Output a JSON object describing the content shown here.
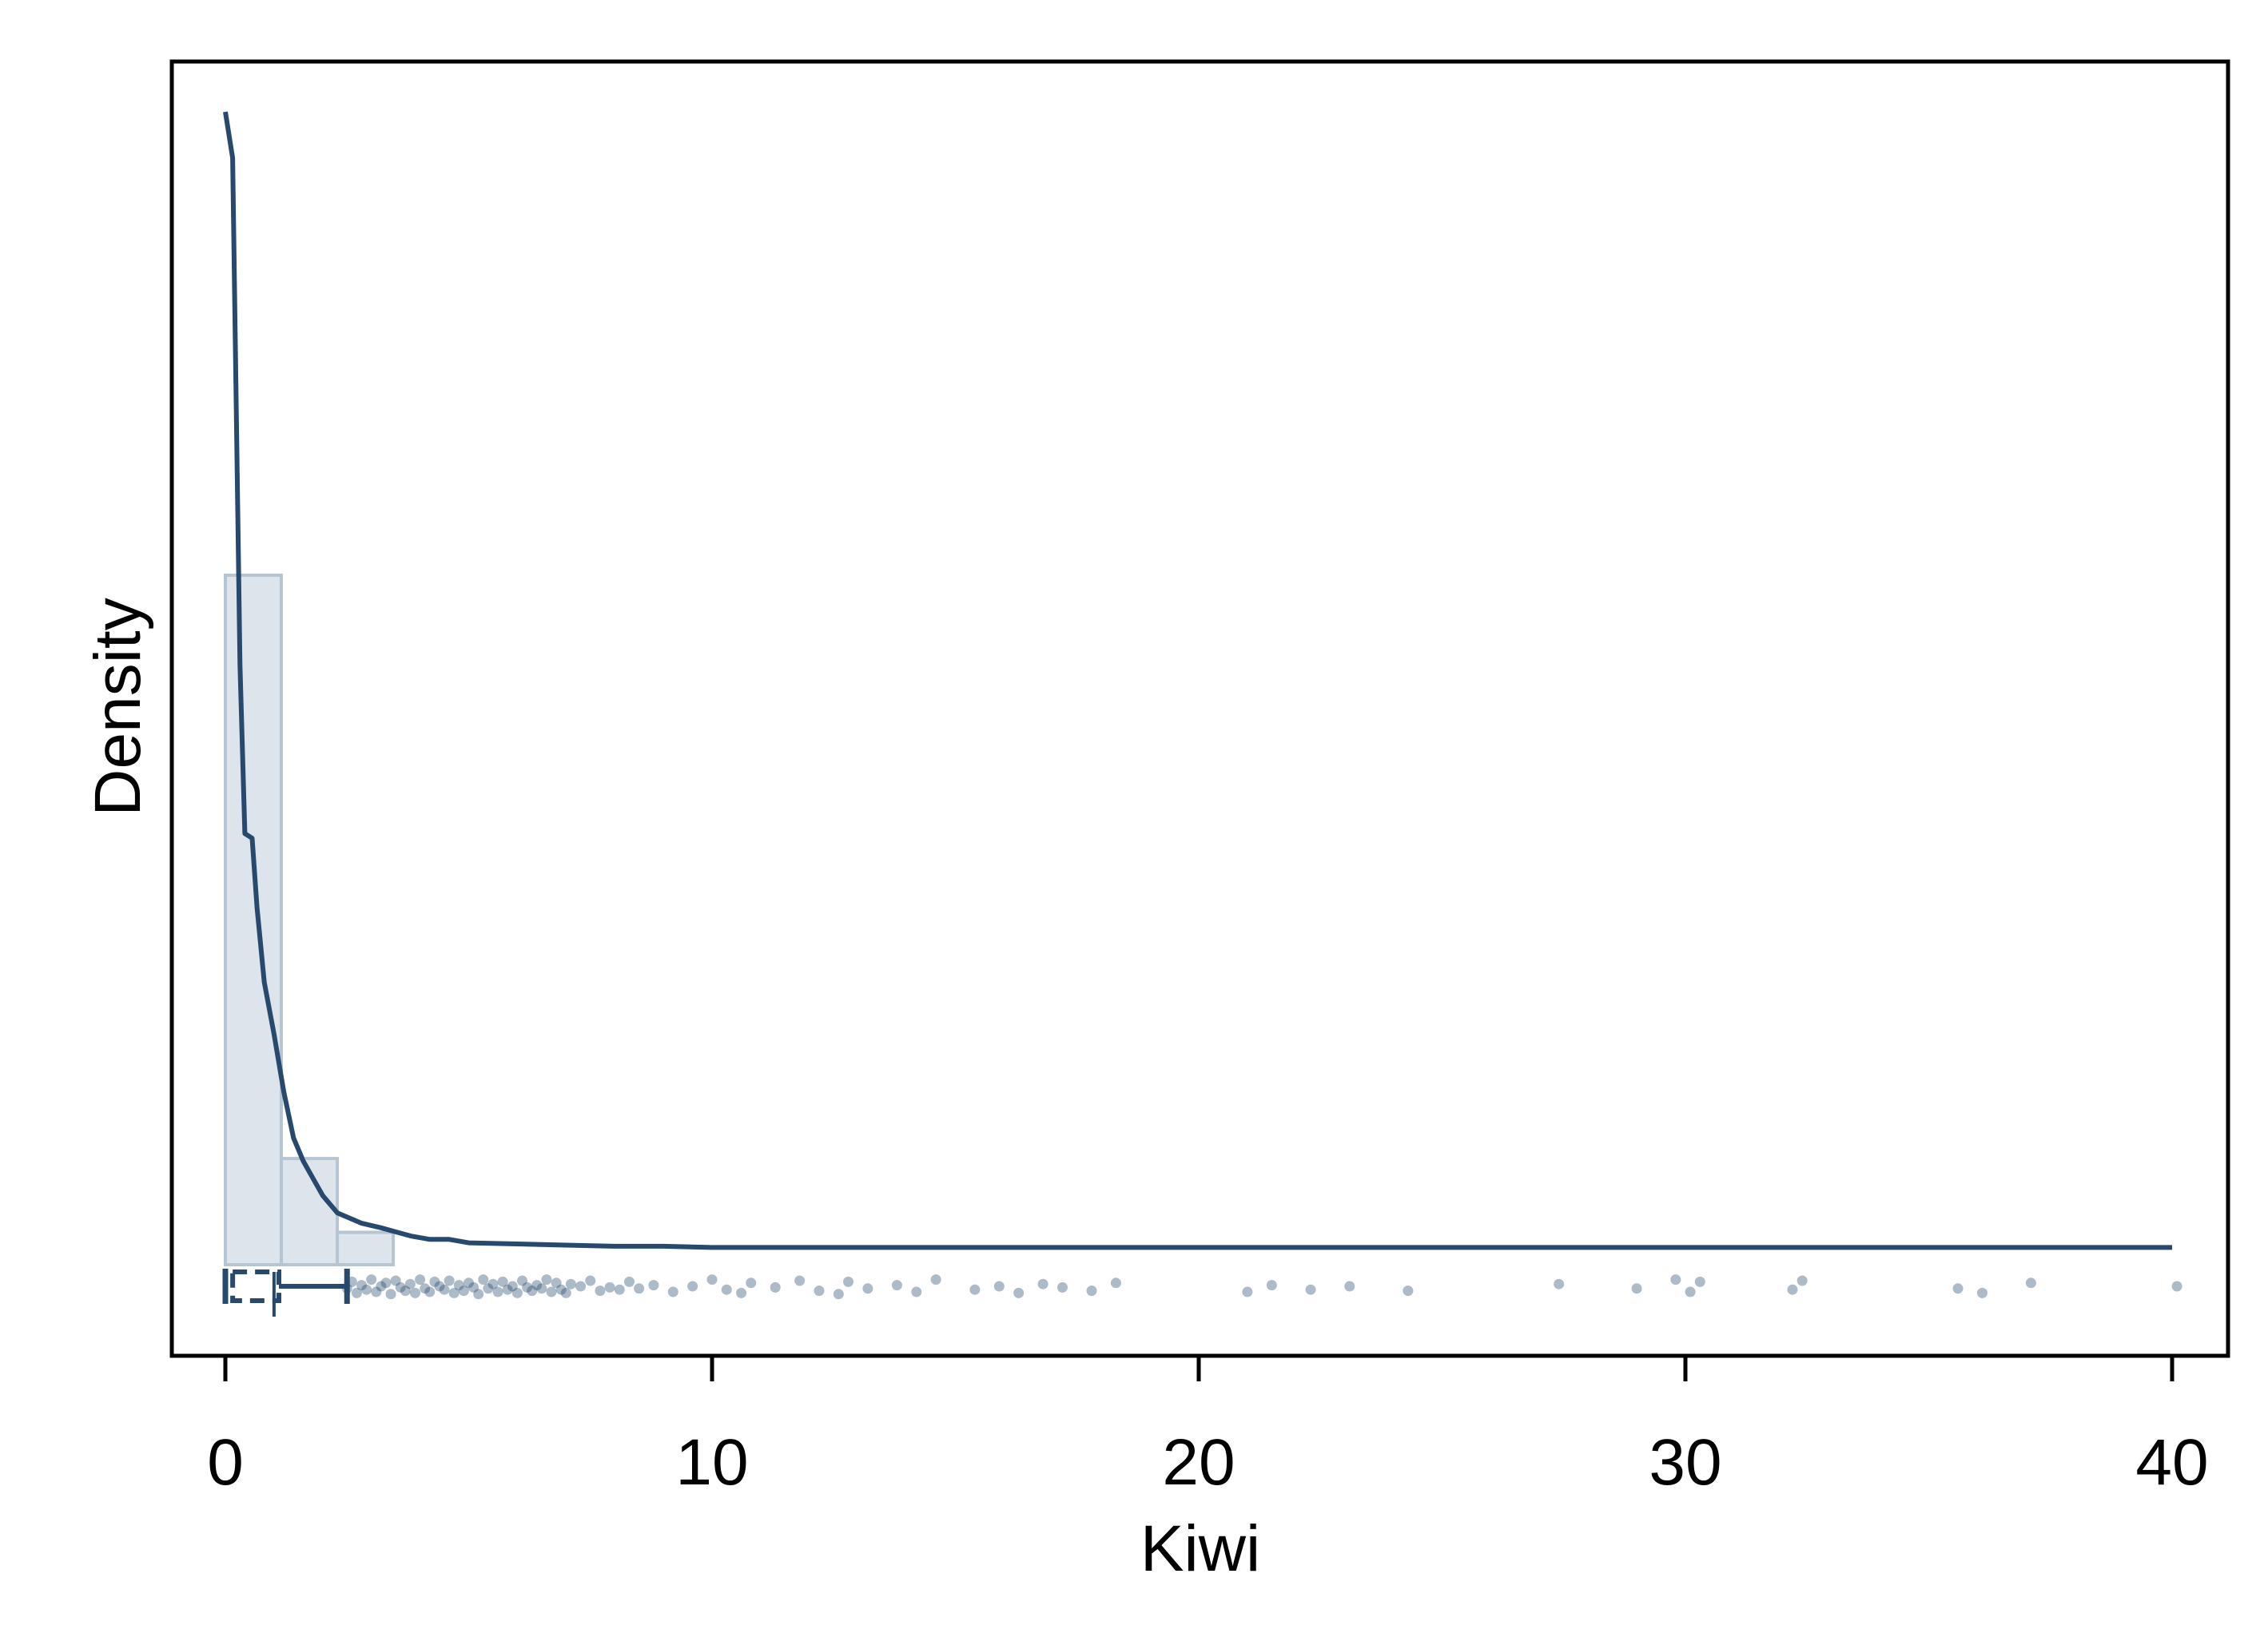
{
  "chart_data": {
    "type": "histogram",
    "xlabel": "Kiwi",
    "ylabel": "Density",
    "xlim": [
      -1.1,
      41.2
    ],
    "x_ticks": [
      0,
      10,
      20,
      30,
      40
    ],
    "x_tick_labels": [
      "0",
      "10",
      "20",
      "30",
      "40"
    ],
    "y_ticks_shown": false,
    "grid": false,
    "legend": "none",
    "colors": {
      "line": "#27496d",
      "hist_fill": "#dde4ec",
      "hist_edge": "#b7c4d1",
      "points": "#27496d",
      "frame": "#000000"
    },
    "histogram": {
      "bin_edges": [
        0,
        1.15,
        2.3,
        3.45
      ],
      "relative_heights": [
        1.0,
        0.154,
        0.047
      ]
    },
    "density_curve": {
      "x": [
        0,
        0.15,
        0.3,
        0.4,
        0.55,
        0.65,
        0.8,
        1.0,
        1.2,
        1.4,
        1.6,
        1.8,
        2.0,
        2.3,
        2.8,
        3.2,
        3.8,
        4.2,
        4.6,
        5.0,
        6.0,
        7.0,
        8.0,
        9.0,
        10.0,
        12.0,
        15.0,
        20.0,
        25.0,
        30.0,
        35.0,
        40.0
      ],
      "relative_y": [
        1.0,
        0.96,
        0.52,
        0.374,
        0.37,
        0.31,
        0.245,
        0.2,
        0.15,
        0.11,
        0.09,
        0.075,
        0.06,
        0.045,
        0.036,
        0.032,
        0.025,
        0.022,
        0.022,
        0.019,
        0.018,
        0.017,
        0.016,
        0.016,
        0.015,
        0.015,
        0.015,
        0.015,
        0.015,
        0.015,
        0.015,
        0.015
      ]
    },
    "boxplot": {
      "whisker_low": 0,
      "q1": 0.15,
      "median": 1.0,
      "q3": 1.1,
      "whisker_high": 2.5
    },
    "points_x": [
      2.5,
      2.6,
      2.7,
      2.8,
      2.9,
      3.0,
      3.1,
      3.2,
      3.3,
      3.4,
      3.5,
      3.6,
      3.7,
      3.8,
      3.9,
      4.0,
      4.1,
      4.2,
      4.3,
      4.4,
      4.5,
      4.6,
      4.7,
      4.8,
      4.9,
      5.0,
      5.1,
      5.2,
      5.3,
      5.4,
      5.5,
      5.6,
      5.7,
      5.8,
      5.9,
      6.0,
      6.1,
      6.2,
      6.3,
      6.4,
      6.5,
      6.6,
      6.7,
      6.8,
      6.9,
      7.0,
      7.1,
      7.3,
      7.5,
      7.7,
      7.9,
      8.1,
      8.3,
      8.5,
      8.8,
      9.2,
      9.6,
      10.0,
      10.3,
      10.6,
      10.8,
      11.3,
      11.8,
      12.2,
      12.6,
      12.8,
      13.2,
      13.8,
      14.2,
      14.6,
      15.4,
      15.9,
      16.3,
      16.8,
      17.2,
      17.8,
      18.3,
      21.0,
      21.5,
      22.3,
      23.1,
      24.3,
      27.4,
      29.0,
      29.8,
      30.1,
      30.3,
      32.2,
      32.4,
      35.6,
      36.1,
      37.1,
      40.1
    ],
    "points_jitter": [
      0.2,
      -0.4,
      0.6,
      -0.1,
      0.3,
      -0.6,
      0.5,
      0.0,
      -0.3,
      0.7,
      -0.5,
      0.1,
      0.4,
      -0.2,
      0.6,
      -0.6,
      0.2,
      0.5,
      -0.4,
      0.0,
      0.3,
      -0.5,
      0.6,
      -0.1,
      0.4,
      -0.3,
      0.1,
      0.7,
      -0.6,
      0.2,
      -0.2,
      0.5,
      -0.4,
      0.3,
      0.0,
      0.6,
      -0.5,
      0.1,
      0.4,
      -0.1,
      0.2,
      -0.6,
      0.5,
      -0.3,
      0.3,
      0.6,
      -0.2,
      0.0,
      -0.5,
      0.4,
      0.1,
      0.3,
      -0.4,
      0.2,
      -0.1,
      0.5,
      0.0,
      -0.6,
      0.3,
      0.6,
      -0.3,
      0.1,
      -0.5,
      0.4,
      0.7,
      -0.4,
      0.2,
      -0.1,
      0.5,
      -0.6,
      0.3,
      0.0,
      0.6,
      -0.2,
      0.1,
      0.4,
      -0.3,
      0.5,
      -0.1,
      0.3,
      0.0,
      0.4,
      -0.2,
      0.2,
      -0.6,
      0.5,
      -0.4,
      0.3,
      -0.5,
      0.2,
      0.6,
      -0.3,
      0.0
    ]
  }
}
